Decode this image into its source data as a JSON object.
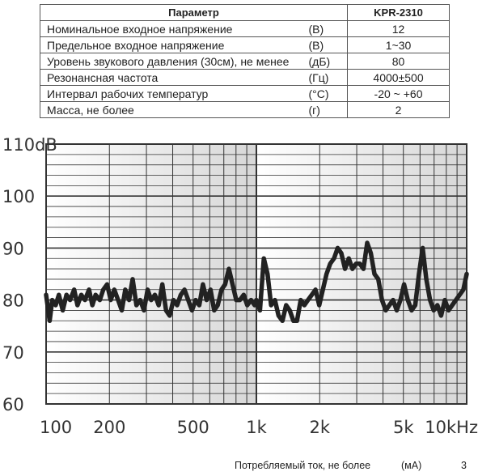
{
  "table": {
    "headers": [
      "Параметр",
      "KPR-2310"
    ],
    "rows": [
      {
        "name": "Номинальное входное напряжение",
        "unit": "(В)",
        "value": "12"
      },
      {
        "name": "Предельное входное напряжение",
        "unit": "(В)",
        "value": "1~30"
      },
      {
        "name": "Уровень звукового давления (30см), не менее",
        "unit": "(дБ)",
        "value": "80"
      },
      {
        "name": "Резонансная частота",
        "unit": "(Гц)",
        "value": "4000±500"
      },
      {
        "name": "Интервал рабочих температур",
        "unit": "(°С)",
        "value": "-20 ~ +60"
      },
      {
        "name": "Масса, не более",
        "unit": "(г)",
        "value": "2"
      }
    ]
  },
  "footer": {
    "name": "Потребляемый ток, не более",
    "unit": "(мА)",
    "value": "3"
  },
  "chart_data": {
    "type": "line",
    "x_scale": "log",
    "xlim": [
      100,
      10000
    ],
    "ylim": [
      60,
      110
    ],
    "grid": true,
    "x_tick_labels": [
      {
        "x": 100,
        "label": "100"
      },
      {
        "x": 200,
        "label": "200"
      },
      {
        "x": 500,
        "label": "500"
      },
      {
        "x": 1000,
        "label": "1k"
      },
      {
        "x": 2000,
        "label": "2k"
      },
      {
        "x": 5000,
        "label": "5k"
      },
      {
        "x": 10000,
        "label": "10kHz"
      }
    ],
    "y_tick_labels": [
      {
        "y": 60,
        "label": "60"
      },
      {
        "y": 70,
        "label": "70"
      },
      {
        "y": 80,
        "label": "80"
      },
      {
        "y": 90,
        "label": "90"
      },
      {
        "y": 100,
        "label": "100"
      },
      {
        "y": 110,
        "label": "110dB"
      }
    ],
    "colors": {
      "line": "#222222",
      "grid": "#333333",
      "background_light": "#ffffff",
      "background_dark": "#d7d7d7"
    },
    "series": [
      {
        "x": [
          100,
          104,
          107,
          111,
          115,
          120,
          125,
          130,
          136,
          141,
          147,
          153,
          160,
          166,
          172,
          180,
          187,
          195,
          203,
          211,
          220,
          229,
          238,
          248,
          258,
          269,
          280,
          292,
          304,
          316,
          329,
          343,
          357,
          372,
          387,
          403,
          420,
          437,
          455,
          474,
          494,
          514,
          535,
          557,
          580,
          605,
          630,
          655,
          683,
          710,
          740,
          770,
          802,
          835,
          870,
          905,
          943,
          982,
          1000,
          1040,
          1085,
          1130,
          1175,
          1225,
          1275,
          1330,
          1385,
          1440,
          1500,
          1560,
          1625,
          1690,
          1760,
          1835,
          1910,
          1990,
          2070,
          2155,
          2245,
          2340,
          2435,
          2535,
          2640,
          2750,
          2860,
          2980,
          3100,
          3230,
          3365,
          3500,
          3645,
          3800,
          3955,
          4120,
          4290,
          4465,
          4650,
          4840,
          5040,
          5250,
          5470,
          5695,
          5930,
          6175,
          6430,
          6695,
          6970,
          7260,
          7560,
          7870,
          8200,
          8535,
          8890,
          9255,
          9640,
          10000
        ],
        "y": [
          81,
          76,
          80,
          79,
          81,
          78,
          81,
          80,
          82,
          79,
          81,
          80,
          82,
          79,
          81,
          80,
          82,
          83,
          80,
          82,
          80,
          78,
          82,
          80,
          84,
          79,
          80,
          78,
          82,
          80,
          81,
          79,
          83,
          78,
          77,
          80,
          79,
          81,
          82,
          80,
          78,
          80,
          79,
          83,
          80,
          82,
          78,
          79,
          82,
          83,
          86,
          83,
          80,
          80,
          81,
          79,
          80,
          79,
          80,
          78,
          88,
          85,
          79,
          80,
          77,
          76,
          79,
          78,
          76,
          76,
          80,
          79,
          80,
          81,
          82,
          79,
          82,
          85,
          87,
          88,
          90,
          89,
          86,
          88,
          86,
          87,
          87,
          86,
          91,
          89,
          85,
          84,
          80,
          78,
          79,
          80,
          78,
          80,
          83,
          80,
          78,
          79,
          85,
          90,
          84,
          80,
          78,
          79,
          77,
          80,
          78,
          79,
          80,
          81,
          82,
          85
        ]
      }
    ]
  }
}
